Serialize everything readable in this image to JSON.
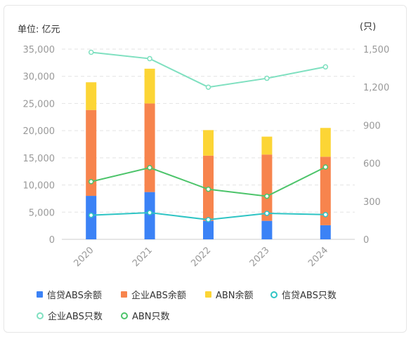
{
  "units": {
    "left": "单位: 亿元",
    "right": "(只)"
  },
  "colors": {
    "credit_abs_balance": "#3b82f6",
    "corp_abs_balance": "#f7844d",
    "abn_balance": "#fcd535",
    "credit_abs_count": "#2ec4c4",
    "corp_abs_count": "#7fe0c0",
    "abn_count": "#4cc46a",
    "grid": "#e3e3e3",
    "axis_text": "#999999"
  },
  "chart_data": {
    "type": "bar",
    "categories": [
      "2020",
      "2021",
      "2022",
      "2023",
      "2024"
    ],
    "y_left": {
      "ylim": [
        0,
        35000
      ],
      "ticks": [
        "0",
        "5,000",
        "10,000",
        "15,000",
        "20,000",
        "25,000",
        "30,000",
        "35,000"
      ]
    },
    "y_right": {
      "ylim": [
        0,
        1500
      ],
      "ticks": [
        "0",
        "300",
        "600",
        "900",
        "1,200",
        "1,500"
      ]
    },
    "bar_series": [
      {
        "name": "信贷ABS余额",
        "values": [
          8000,
          8700,
          3400,
          3400,
          2600
        ]
      },
      {
        "name": "企业ABS余额",
        "values": [
          15800,
          16300,
          12000,
          12200,
          12600
        ]
      },
      {
        "name": "ABN余额",
        "values": [
          5100,
          6400,
          4700,
          3300,
          5300
        ]
      }
    ],
    "line_series": [
      {
        "name": "信贷ABS只数",
        "axis": "right",
        "values": [
          190,
          210,
          155,
          205,
          195
        ]
      },
      {
        "name": "企业ABS只数",
        "axis": "right",
        "values": [
          1475,
          1425,
          1200,
          1270,
          1360
        ]
      },
      {
        "name": "ABN只数",
        "axis": "right",
        "values": [
          455,
          565,
          395,
          340,
          570
        ]
      }
    ]
  },
  "legend": [
    {
      "label": "信贷ABS余额",
      "kind": "square",
      "color_key": "credit_abs_balance"
    },
    {
      "label": "企业ABS余额",
      "kind": "square",
      "color_key": "corp_abs_balance"
    },
    {
      "label": "ABN余额",
      "kind": "square",
      "color_key": "abn_balance"
    },
    {
      "label": "信贷ABS只数",
      "kind": "ring",
      "color_key": "credit_abs_count"
    },
    {
      "label": "企业ABS只数",
      "kind": "ring",
      "color_key": "corp_abs_count"
    },
    {
      "label": "ABN只数",
      "kind": "ring",
      "color_key": "abn_count"
    }
  ]
}
